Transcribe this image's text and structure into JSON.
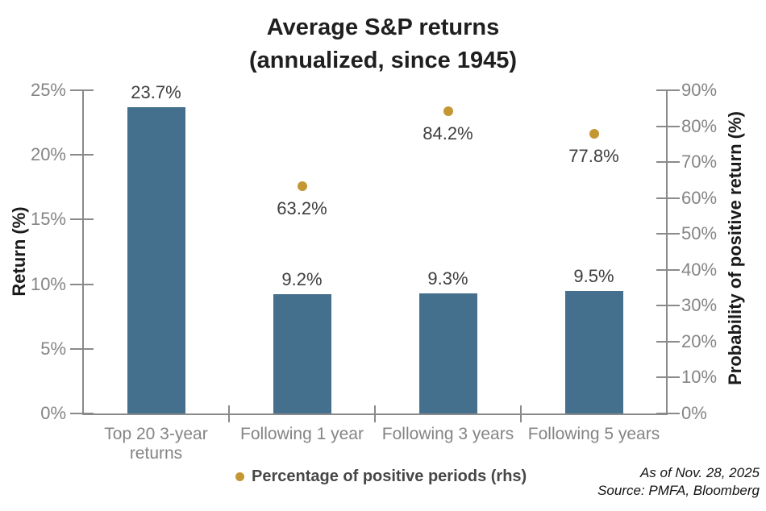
{
  "title": {
    "line1": "Average S&P returns",
    "line2": "(annualized, since 1945)"
  },
  "chart_data": {
    "type": "combo-bar-scatter",
    "grid": false,
    "categories": [
      "Top 20 3-year\nreturns",
      "Following 1 year",
      "Following 3 years",
      "Following 5 years"
    ],
    "series": [
      {
        "name": "Average return",
        "type": "bar",
        "axis": "left",
        "values": [
          23.7,
          9.2,
          9.3,
          9.5
        ],
        "labels": [
          "23.7%",
          "9.2%",
          "9.3%",
          "9.5%"
        ],
        "color": "#45708D"
      },
      {
        "name": "Percentage of positive periods (rhs)",
        "type": "scatter",
        "axis": "right",
        "values": [
          null,
          63.2,
          84.2,
          77.8
        ],
        "labels": [
          "",
          "63.2%",
          "84.2%",
          "77.8%"
        ],
        "color": "#C49733"
      }
    ],
    "left_axis": {
      "title": "Return (%)",
      "min": 0,
      "max": 25,
      "ticks": [
        {
          "v": 0,
          "label": "0%"
        },
        {
          "v": 5,
          "label": "5%"
        },
        {
          "v": 10,
          "label": "10%"
        },
        {
          "v": 15,
          "label": "15%"
        },
        {
          "v": 20,
          "label": "20%"
        },
        {
          "v": 25,
          "label": "25%"
        }
      ]
    },
    "right_axis": {
      "title": "Probability of positive return (%)",
      "min": 0,
      "max": 90,
      "ticks": [
        {
          "v": 0,
          "label": "0%"
        },
        {
          "v": 10,
          "label": "10%"
        },
        {
          "v": 20,
          "label": "20%"
        },
        {
          "v": 30,
          "label": "30%"
        },
        {
          "v": 40,
          "label": "40%"
        },
        {
          "v": 50,
          "label": "50%"
        },
        {
          "v": 60,
          "label": "60%"
        },
        {
          "v": 70,
          "label": "70%"
        },
        {
          "v": 80,
          "label": "80%"
        },
        {
          "v": 90,
          "label": "90%"
        }
      ]
    },
    "legend": {
      "label": "Percentage of positive periods (rhs)",
      "position": "bottom"
    }
  },
  "footer": {
    "as_of": "As of Nov. 28, 2025",
    "source": "Source: PMFA, Bloomberg"
  },
  "colors": {
    "bar": "#45708D",
    "dot": "#C49733",
    "axis": "#8A8A8A",
    "tick_label": "#848484",
    "data_label": "#3F3F3F",
    "title": "#1F1F1F"
  }
}
